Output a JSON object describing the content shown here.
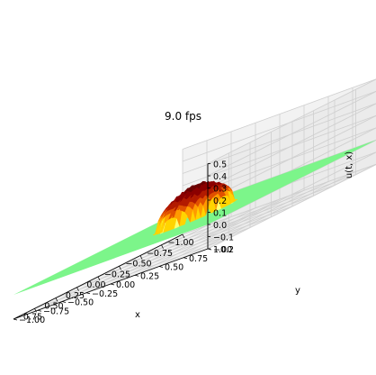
{
  "figure": {
    "fps_label": "9.0 fps"
  },
  "chart_data": {
    "type": "surface3d",
    "xlabel": "x",
    "ylabel": "y",
    "zlabel": "u(t, x)",
    "xlim": [
      -1.0,
      1.0
    ],
    "ylim": [
      -1.0,
      1.0
    ],
    "zlim": [
      -0.2,
      0.5
    ],
    "x_ticks": [
      "−1.00",
      "−0.75",
      "−0.50",
      "−0.25",
      "0.00",
      "0.25",
      "0.50",
      "0.75"
    ],
    "y_ticks": [
      "−1.00",
      "−0.75",
      "−0.50",
      "−0.25",
      "0.00",
      "0.25",
      "0.50",
      "0.75",
      "1.00"
    ],
    "z_ticks": [
      "−0.2",
      "−0.1",
      "0.0",
      "0.1",
      "0.2",
      "0.3",
      "0.4",
      "0.5"
    ],
    "grid": true,
    "colormap": "jet-like",
    "base_plane_value": 0.0,
    "base_plane_color": "#7cf58a",
    "peak": {
      "center": [
        0.0,
        0.0
      ],
      "radius": 0.3,
      "height": 0.26
    },
    "peak_colors": [
      "#6a0000",
      "#8b0000",
      "#b21a00",
      "#e05000",
      "#ff9a00",
      "#ffd400",
      "#ffff70"
    ]
  }
}
